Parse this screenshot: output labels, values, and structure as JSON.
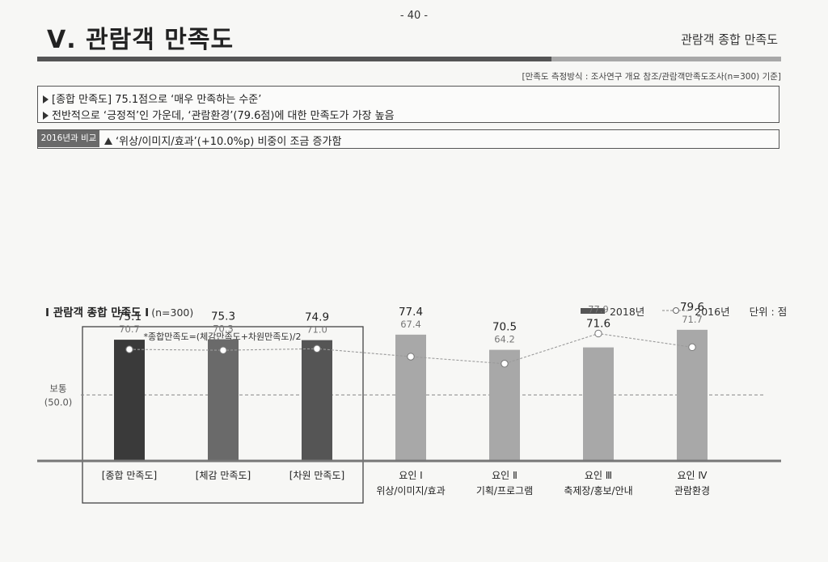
{
  "header": {
    "page_number": "- 40 -",
    "chapter_title": "Ⅴ. 관람객 만족도",
    "section_label": "관람객 종합 만족도",
    "method_note": "[만족도 측정방식 : 조사연구 개요 참조/관람객만족도조사(n=300) 기준]"
  },
  "summary": {
    "lines": [
      "[종합 만족도] 75.1점으로 ‘매우 만족하는 수준’",
      "전반적으로 ‘긍정적’인 가운데, ‘관람환경’(79.6점)에 대한 만족도가 가장 높음"
    ]
  },
  "comparison": {
    "tag": "2016년과 비교",
    "text": "‘위상/이미지/효과’(+10.0%p) 비중이 조금 증가함"
  },
  "chart_heading": {
    "title": "Ⅰ 관람객 종합 만족도 Ⅰ",
    "n": "(n=300)"
  },
  "legend": {
    "series_2018": "2018년",
    "series_2016": "2016년",
    "unit": "단위 : 점"
  },
  "chart_data": {
    "type": "bar",
    "categories": [
      "[종합 만족도]",
      "[체감 만족도]",
      "[차원 만족도]",
      "요인 Ⅰ 위상/이미지/효과",
      "요인 Ⅱ 기획/프로그램",
      "요인 Ⅲ 축제장/홍보/안내",
      "요인 Ⅳ 관람환경"
    ],
    "category_lines": [
      [
        "[종합 만족도]"
      ],
      [
        "[체감 만족도]"
      ],
      [
        "[차원 만족도]"
      ],
      [
        "요인 Ⅰ",
        "위상/이미지/효과"
      ],
      [
        "요인 Ⅱ",
        "기획/프로그램"
      ],
      [
        "요인 Ⅲ",
        "축제장/홍보/안내"
      ],
      [
        "요인 Ⅳ",
        "관람환경"
      ]
    ],
    "series": [
      {
        "name": "2018년",
        "chart": "bar",
        "values": [
          75.1,
          75.3,
          74.9,
          77.4,
          70.5,
          71.6,
          79.6
        ],
        "labels": [
          "75.1",
          "75.3",
          "74.9",
          "77.4",
          "70.5",
          "71.6",
          "79.6"
        ]
      },
      {
        "name": "2016년",
        "chart": "line",
        "values": [
          70.7,
          70.3,
          71.0,
          67.4,
          64.2,
          77.9,
          71.7
        ],
        "labels": [
          "70.7",
          "70.3",
          "71.0",
          "67.4",
          "64.2",
          "77.9",
          "71.7"
        ]
      }
    ],
    "bar_colors": [
      "#3a3a3a",
      "#6a6a6a",
      "#555555",
      "#a8a8a8",
      "#a8a8a8",
      "#a8a8a8",
      "#a8a8a8"
    ],
    "line_color": "#9a9a9a",
    "reference": {
      "label": "보통",
      "value_label": "(50.0)",
      "value": 50.0
    },
    "group_note": "*종합만족도=(체감만족도+차원만족도)/2",
    "grouped_categories": 3,
    "xlabel": "",
    "ylabel": "",
    "ylim": [
      0,
      100
    ]
  }
}
